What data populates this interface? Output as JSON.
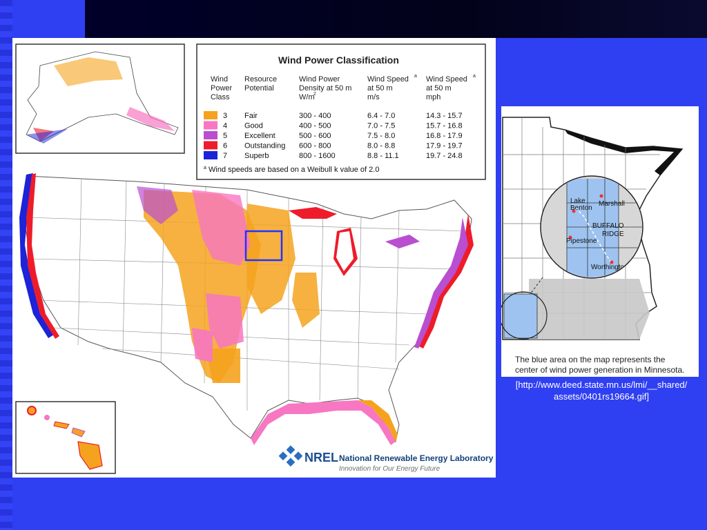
{
  "slide": {
    "credit_url_line1": "[http://www.deed.state.mn.us/lmi/__shared/",
    "credit_url_line2": "assets/0401rs19664.gif]"
  },
  "wind_map": {
    "legend": {
      "title": "Wind Power Classification",
      "headers": {
        "class": [
          "Wind",
          "Power",
          "Class"
        ],
        "potential": [
          "Resource",
          "Potential"
        ],
        "density": [
          "Wind Power",
          "Density at 50 m",
          "W/m"
        ],
        "speed_ms": [
          "Wind Speed",
          "at 50 m",
          "m/s"
        ],
        "speed_mph": [
          "Wind Speed",
          "at 50 m",
          "mph"
        ],
        "superscript_a": "a",
        "superscript_2": "2"
      },
      "rows": [
        {
          "cls": "3",
          "potential": "Fair",
          "density": "300 -  400",
          "ms": "6.4 -  7.0",
          "mph": "14.3 - 15.7",
          "color": "#f5a31e"
        },
        {
          "cls": "4",
          "potential": "Good",
          "density": "400 -  500",
          "ms": "7.0 -  7.5",
          "mph": "15.7 - 16.8",
          "color": "#f777c2"
        },
        {
          "cls": "5",
          "potential": "Excellent",
          "density": "500 -  600",
          "ms": "7.5 -  8.0",
          "mph": "16.8 - 17.9",
          "color": "#b94fd0"
        },
        {
          "cls": "6",
          "potential": "Outstanding",
          "density": "600 -  800",
          "ms": "8.0 -  8.8",
          "mph": "17.9 - 19.7",
          "color": "#ee1c2a"
        },
        {
          "cls": "7",
          "potential": "Superb",
          "density": "800 - 1600",
          "ms": "8.8 - 11.1",
          "mph": "19.7 - 24.8",
          "color": "#1c23d8"
        }
      ],
      "footnote_mark": "a",
      "footnote": "Wind speeds are based on a Weibull k value of 2.0"
    },
    "nrel": {
      "logo_text": "NREL",
      "name": "National Renewable Energy Laboratory",
      "tagline": "Innovation for Our Energy Future"
    }
  },
  "minnesota_map": {
    "labels": {
      "lake": "Lake",
      "benton": "Benton",
      "marshall": "Marshall",
      "buffalo": "BUFFALO",
      "ridge": "RIDGE",
      "pipestone": "Pipestone",
      "worthington": "Worthington"
    },
    "caption_line1": "The blue area on the map represents the",
    "caption_line2": "center of wind power generation in Minnesota."
  }
}
